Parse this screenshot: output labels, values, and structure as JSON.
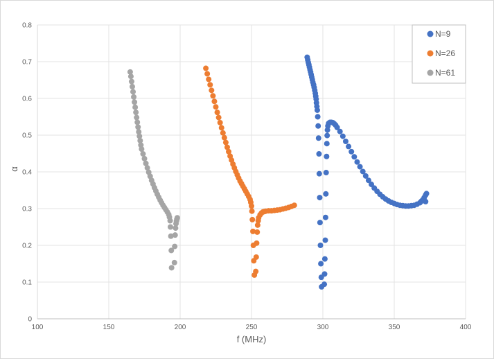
{
  "chart_data": {
    "type": "scatter",
    "xlabel": "f (MHz)",
    "ylabel": "α",
    "xlim": [
      100,
      400
    ],
    "ylim": [
      0,
      0.8
    ],
    "x_ticks": [
      "100",
      "150",
      "200",
      "250",
      "300",
      "350",
      "400"
    ],
    "y_ticks": [
      "0",
      "0.1",
      "0.2",
      "0.3",
      "0.4",
      "0.5",
      "0.6",
      "0.7",
      "0.8"
    ],
    "grid": true,
    "legend_position": "top-right",
    "series": [
      {
        "name": "N=9",
        "color": "#4472c4",
        "points": [
          [
            289,
            0.712
          ],
          [
            289.4,
            0.705
          ],
          [
            289.8,
            0.698
          ],
          [
            290.2,
            0.692
          ],
          [
            290.6,
            0.685
          ],
          [
            291,
            0.678
          ],
          [
            291.4,
            0.672
          ],
          [
            291.8,
            0.665
          ],
          [
            292.2,
            0.658
          ],
          [
            292.6,
            0.651
          ],
          [
            293,
            0.644
          ],
          [
            293.5,
            0.637
          ],
          [
            293.9,
            0.63
          ],
          [
            294.3,
            0.622
          ],
          [
            294.7,
            0.614
          ],
          [
            295,
            0.606
          ],
          [
            295.3,
            0.598
          ],
          [
            295.5,
            0.588
          ],
          [
            295.8,
            0.578
          ],
          [
            296.1,
            0.568
          ],
          [
            296.4,
            0.55
          ],
          [
            296.7,
            0.525
          ],
          [
            297,
            0.492
          ],
          [
            297.3,
            0.449
          ],
          [
            297.5,
            0.395
          ],
          [
            297.8,
            0.33
          ],
          [
            298,
            0.262
          ],
          [
            298.3,
            0.2
          ],
          [
            298.6,
            0.15
          ],
          [
            298.9,
            0.113
          ],
          [
            299.1,
            0.087
          ],
          [
            301,
            0.094
          ],
          [
            301.2,
            0.122
          ],
          [
            301.4,
            0.163
          ],
          [
            301.7,
            0.214
          ],
          [
            301.9,
            0.276
          ],
          [
            302.1,
            0.34
          ],
          [
            302.3,
            0.398
          ],
          [
            302.6,
            0.442
          ],
          [
            302.8,
            0.477
          ],
          [
            303,
            0.499
          ],
          [
            303.2,
            0.514
          ],
          [
            303.5,
            0.525
          ],
          [
            304,
            0.532
          ],
          [
            305,
            0.535
          ],
          [
            306,
            0.535
          ],
          [
            307,
            0.534
          ],
          [
            308,
            0.531
          ],
          [
            309,
            0.527
          ],
          [
            310,
            0.521
          ],
          [
            312,
            0.51
          ],
          [
            314,
            0.497
          ],
          [
            316,
            0.483
          ],
          [
            318,
            0.469
          ],
          [
            320,
            0.455
          ],
          [
            322,
            0.441
          ],
          [
            324,
            0.427
          ],
          [
            326,
            0.414
          ],
          [
            328,
            0.401
          ],
          [
            330,
            0.389
          ],
          [
            332,
            0.377
          ],
          [
            334,
            0.366
          ],
          [
            336,
            0.356
          ],
          [
            338,
            0.347
          ],
          [
            340,
            0.339
          ],
          [
            342,
            0.332
          ],
          [
            344,
            0.326
          ],
          [
            346,
            0.321
          ],
          [
            348,
            0.317
          ],
          [
            350,
            0.314
          ],
          [
            352,
            0.311
          ],
          [
            354,
            0.309
          ],
          [
            356,
            0.308
          ],
          [
            358,
            0.307
          ],
          [
            360,
            0.307
          ],
          [
            362,
            0.308
          ],
          [
            364,
            0.309
          ],
          [
            366,
            0.312
          ],
          [
            368,
            0.316
          ],
          [
            369,
            0.32
          ],
          [
            370,
            0.324
          ],
          [
            371,
            0.33
          ],
          [
            372,
            0.337
          ],
          [
            372.6,
            0.341
          ],
          [
            372,
            0.319
          ]
        ]
      },
      {
        "name": "N=26",
        "color": "#ed7d31",
        "points": [
          [
            218,
            0.682
          ],
          [
            219,
            0.667
          ],
          [
            220,
            0.652
          ],
          [
            221,
            0.637
          ],
          [
            222,
            0.622
          ],
          [
            223,
            0.607
          ],
          [
            224,
            0.592
          ],
          [
            225,
            0.577
          ],
          [
            226,
            0.562
          ],
          [
            227,
            0.548
          ],
          [
            228,
            0.534
          ],
          [
            229,
            0.52
          ],
          [
            230,
            0.506
          ],
          [
            231,
            0.493
          ],
          [
            232,
            0.48
          ],
          [
            233,
            0.467
          ],
          [
            234,
            0.455
          ],
          [
            235,
            0.443
          ],
          [
            236,
            0.432
          ],
          [
            237,
            0.421
          ],
          [
            238,
            0.411
          ],
          [
            239,
            0.401
          ],
          [
            240,
            0.392
          ],
          [
            241,
            0.383
          ],
          [
            242,
            0.375
          ],
          [
            243,
            0.368
          ],
          [
            244,
            0.361
          ],
          [
            245,
            0.354
          ],
          [
            246,
            0.347
          ],
          [
            247,
            0.34
          ],
          [
            248,
            0.333
          ],
          [
            249,
            0.325
          ],
          [
            249.5,
            0.317
          ],
          [
            250,
            0.307
          ],
          [
            250.3,
            0.293
          ],
          [
            250.6,
            0.27
          ],
          [
            251,
            0.238
          ],
          [
            251.3,
            0.2
          ],
          [
            251.6,
            0.158
          ],
          [
            252,
            0.119
          ],
          [
            253,
            0.129
          ],
          [
            253.3,
            0.168
          ],
          [
            253.6,
            0.206
          ],
          [
            254,
            0.236
          ],
          [
            254.3,
            0.255
          ],
          [
            254.7,
            0.267
          ],
          [
            255,
            0.275
          ],
          [
            256,
            0.283
          ],
          [
            257,
            0.288
          ],
          [
            258,
            0.291
          ],
          [
            259,
            0.292
          ],
          [
            260,
            0.293
          ],
          [
            262,
            0.294
          ],
          [
            264,
            0.294
          ],
          [
            266,
            0.295
          ],
          [
            268,
            0.296
          ],
          [
            270,
            0.297
          ],
          [
            272,
            0.299
          ],
          [
            274,
            0.301
          ],
          [
            276,
            0.303
          ],
          [
            278,
            0.306
          ],
          [
            280,
            0.309
          ]
        ]
      },
      {
        "name": "N=61",
        "color": "#a5a5a5",
        "points": [
          [
            165,
            0.672
          ],
          [
            165.5,
            0.66
          ],
          [
            166,
            0.646
          ],
          [
            166.5,
            0.632
          ],
          [
            167,
            0.618
          ],
          [
            167.5,
            0.604
          ],
          [
            168,
            0.59
          ],
          [
            168.5,
            0.576
          ],
          [
            169,
            0.562
          ],
          [
            169.5,
            0.548
          ],
          [
            170,
            0.535
          ],
          [
            170.5,
            0.522
          ],
          [
            171,
            0.509
          ],
          [
            171.5,
            0.497
          ],
          [
            172,
            0.485
          ],
          [
            172.5,
            0.473
          ],
          [
            173,
            0.462
          ],
          [
            174,
            0.449
          ],
          [
            175,
            0.436
          ],
          [
            176,
            0.423
          ],
          [
            177,
            0.411
          ],
          [
            178,
            0.399
          ],
          [
            179,
            0.388
          ],
          [
            180,
            0.377
          ],
          [
            181,
            0.367
          ],
          [
            182,
            0.357
          ],
          [
            183,
            0.348
          ],
          [
            184,
            0.339
          ],
          [
            185,
            0.331
          ],
          [
            186,
            0.323
          ],
          [
            187,
            0.316
          ],
          [
            188,
            0.309
          ],
          [
            189,
            0.303
          ],
          [
            190,
            0.297
          ],
          [
            191,
            0.291
          ],
          [
            192,
            0.284
          ],
          [
            192.5,
            0.277
          ],
          [
            193,
            0.267
          ],
          [
            193.2,
            0.25
          ],
          [
            193.5,
            0.225
          ],
          [
            193.8,
            0.186
          ],
          [
            194,
            0.139
          ],
          [
            196,
            0.153
          ],
          [
            196.2,
            0.197
          ],
          [
            196.5,
            0.228
          ],
          [
            196.8,
            0.247
          ],
          [
            197.1,
            0.259
          ],
          [
            197.4,
            0.266
          ],
          [
            197.7,
            0.271
          ],
          [
            198,
            0.275
          ]
        ]
      }
    ]
  }
}
